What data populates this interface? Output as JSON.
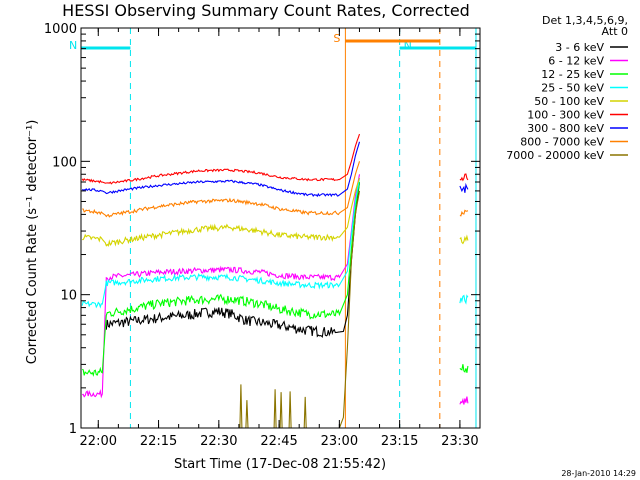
{
  "chart_data": {
    "type": "line",
    "title": "HESSI Observing Summary Count Rates, Corrected",
    "xlabel": "Start Time (17-Dec-08 21:55:42)",
    "ylabel": "Corrected Count Rate (s⁻¹ detector⁻¹)",
    "y_scale": "log",
    "ylim": [
      1,
      1000
    ],
    "xlim": [
      "21:55:42",
      "23:35:00"
    ],
    "x_ticks": [
      "22:00",
      "22:15",
      "22:30",
      "22:45",
      "23:00",
      "23:15",
      "23:30"
    ],
    "y_ticks": [
      "1",
      "10",
      "100",
      "1000"
    ],
    "legend_header": [
      "Det 1,3,4,5,6,9,",
      "Att 0"
    ],
    "legend_position": "right",
    "timestamp": "28-Jan-2010 14:29",
    "flags": [
      {
        "label": "N",
        "color": "#00e5ee",
        "start": "21:55:42",
        "end": "22:08:00",
        "side": "left"
      },
      {
        "label": "N",
        "color": "#00e5ee",
        "start": "23:15:00",
        "end": "23:34:00",
        "side": "right"
      },
      {
        "label": "S",
        "color": "#ff8000",
        "start": "23:01:30",
        "end": "23:25:00",
        "side": "left"
      }
    ],
    "series": [
      {
        "name": "3 - 6 keV",
        "color": "#000000",
        "points": [
          [
            "22:02",
            6
          ],
          [
            "22:08",
            6.3
          ],
          [
            "22:15",
            6.7
          ],
          [
            "22:22",
            7.0
          ],
          [
            "22:27",
            7.4
          ],
          [
            "22:30",
            7.5
          ],
          [
            "22:33",
            7.2
          ],
          [
            "22:37",
            6.4
          ],
          [
            "22:45",
            5.9
          ],
          [
            "22:52",
            5.4
          ],
          [
            "22:59",
            5.2
          ],
          [
            "23:01",
            5.3
          ],
          [
            "23:02",
            7
          ],
          [
            "23:03",
            18
          ],
          [
            "23:04",
            40
          ],
          [
            "23:05",
            70
          ]
        ]
      },
      {
        "name": "6 - 12 keV",
        "color": "#ff00ff",
        "points": [
          [
            "21:56",
            1.8
          ],
          [
            "22:01",
            1.8
          ],
          [
            "22:02",
            13.5
          ],
          [
            "22:08",
            14
          ],
          [
            "22:15",
            14.7
          ],
          [
            "22:25",
            15.2
          ],
          [
            "22:33",
            15.4
          ],
          [
            "22:40",
            14.8
          ],
          [
            "22:45",
            14.0
          ],
          [
            "22:52",
            13.5
          ],
          [
            "23:00",
            13.5
          ],
          [
            "23:02",
            17
          ],
          [
            "23:03",
            30
          ],
          [
            "23:04",
            55
          ],
          [
            "23:05",
            80
          ]
        ]
      },
      {
        "name": "12 - 25 keV",
        "color": "#00ff00",
        "points": [
          [
            "21:56",
            2.6
          ],
          [
            "22:01",
            2.6
          ],
          [
            "22:02",
            7.2
          ],
          [
            "22:08",
            7.8
          ],
          [
            "22:15",
            8.6
          ],
          [
            "22:25",
            9.2
          ],
          [
            "22:33",
            9.3
          ],
          [
            "22:40",
            8.6
          ],
          [
            "22:45",
            7.8
          ],
          [
            "22:52",
            7.2
          ],
          [
            "23:00",
            7.1
          ],
          [
            "23:02",
            10
          ],
          [
            "23:03",
            22
          ],
          [
            "23:04",
            45
          ],
          [
            "23:05",
            70
          ]
        ]
      },
      {
        "name": "25 - 50 keV",
        "color": "#00ffff",
        "points": [
          [
            "21:56",
            8.5
          ],
          [
            "22:01",
            8.5
          ],
          [
            "22:02",
            12.2
          ],
          [
            "22:08",
            12.6
          ],
          [
            "22:15",
            13.2
          ],
          [
            "22:25",
            13.6
          ],
          [
            "22:33",
            13.5
          ],
          [
            "22:40",
            12.8
          ],
          [
            "22:45",
            12.2
          ],
          [
            "22:52",
            11.8
          ],
          [
            "23:00",
            11.8
          ],
          [
            "23:02",
            15
          ],
          [
            "23:03",
            28
          ],
          [
            "23:04",
            50
          ],
          [
            "23:05",
            75
          ]
        ]
      },
      {
        "name": "50 - 100 keV",
        "color": "#d4d400",
        "points": [
          [
            "21:56",
            27
          ],
          [
            "22:01",
            26
          ],
          [
            "22:02",
            24
          ],
          [
            "22:08",
            26
          ],
          [
            "22:15",
            28
          ],
          [
            "22:25",
            31
          ],
          [
            "22:33",
            32
          ],
          [
            "22:40",
            30
          ],
          [
            "22:45",
            28
          ],
          [
            "22:52",
            27
          ],
          [
            "23:00",
            27
          ],
          [
            "23:02",
            32
          ],
          [
            "23:03",
            45
          ],
          [
            "23:04",
            60
          ],
          [
            "23:05",
            75
          ]
        ]
      },
      {
        "name": "100 - 300 keV",
        "color": "#ff0000",
        "points": [
          [
            "21:56",
            73
          ],
          [
            "22:01",
            70
          ],
          [
            "22:02",
            68
          ],
          [
            "22:08",
            72
          ],
          [
            "22:15",
            78
          ],
          [
            "22:25",
            85
          ],
          [
            "22:33",
            86
          ],
          [
            "22:40",
            82
          ],
          [
            "22:45",
            76
          ],
          [
            "22:52",
            73
          ],
          [
            "23:00",
            73
          ],
          [
            "23:02",
            80
          ],
          [
            "23:03",
            100
          ],
          [
            "23:04",
            130
          ],
          [
            "23:05",
            160
          ]
        ]
      },
      {
        "name": "300 - 800 keV",
        "color": "#0000ff",
        "points": [
          [
            "21:56",
            62
          ],
          [
            "22:01",
            60
          ],
          [
            "22:02",
            58
          ],
          [
            "22:08",
            62
          ],
          [
            "22:15",
            66
          ],
          [
            "22:25",
            70
          ],
          [
            "22:33",
            71
          ],
          [
            "22:40",
            67
          ],
          [
            "22:45",
            61
          ],
          [
            "22:52",
            56
          ],
          [
            "23:00",
            56
          ],
          [
            "23:02",
            62
          ],
          [
            "23:03",
            80
          ],
          [
            "23:04",
            110
          ],
          [
            "23:05",
            140
          ]
        ]
      },
      {
        "name": "800 - 7000 keV",
        "color": "#ff8000",
        "points": [
          [
            "21:56",
            43
          ],
          [
            "22:01",
            41
          ],
          [
            "22:02",
            39
          ],
          [
            "22:08",
            42
          ],
          [
            "22:15",
            46
          ],
          [
            "22:25",
            50
          ],
          [
            "22:33",
            51
          ],
          [
            "22:40",
            48
          ],
          [
            "22:45",
            44
          ],
          [
            "22:52",
            41
          ],
          [
            "23:00",
            41
          ],
          [
            "23:02",
            45
          ],
          [
            "23:03",
            60
          ],
          [
            "23:04",
            80
          ],
          [
            "23:05",
            100
          ]
        ]
      },
      {
        "name": "7000 - 20000 keV",
        "color": "#8b7500",
        "points": [
          [
            "22:33",
            1
          ],
          [
            "22:40",
            1
          ],
          [
            "22:45",
            1
          ],
          [
            "22:52",
            1
          ],
          [
            "23:00",
            1
          ],
          [
            "23:01",
            1.2
          ],
          [
            "23:02",
            4
          ],
          [
            "23:03",
            18
          ],
          [
            "23:04",
            40
          ],
          [
            "23:05",
            60
          ]
        ]
      }
    ],
    "post_gap_series": [
      {
        "color": "#ff0000",
        "value": 75
      },
      {
        "color": "#0000ff",
        "value": 62
      },
      {
        "color": "#ff8000",
        "value": 42
      },
      {
        "color": "#d4d400",
        "value": 26
      },
      {
        "color": "#00ffff",
        "value": 9.3
      },
      {
        "color": "#00ff00",
        "value": 2.8
      },
      {
        "color": "#ff00ff",
        "value": 1.6
      }
    ]
  }
}
